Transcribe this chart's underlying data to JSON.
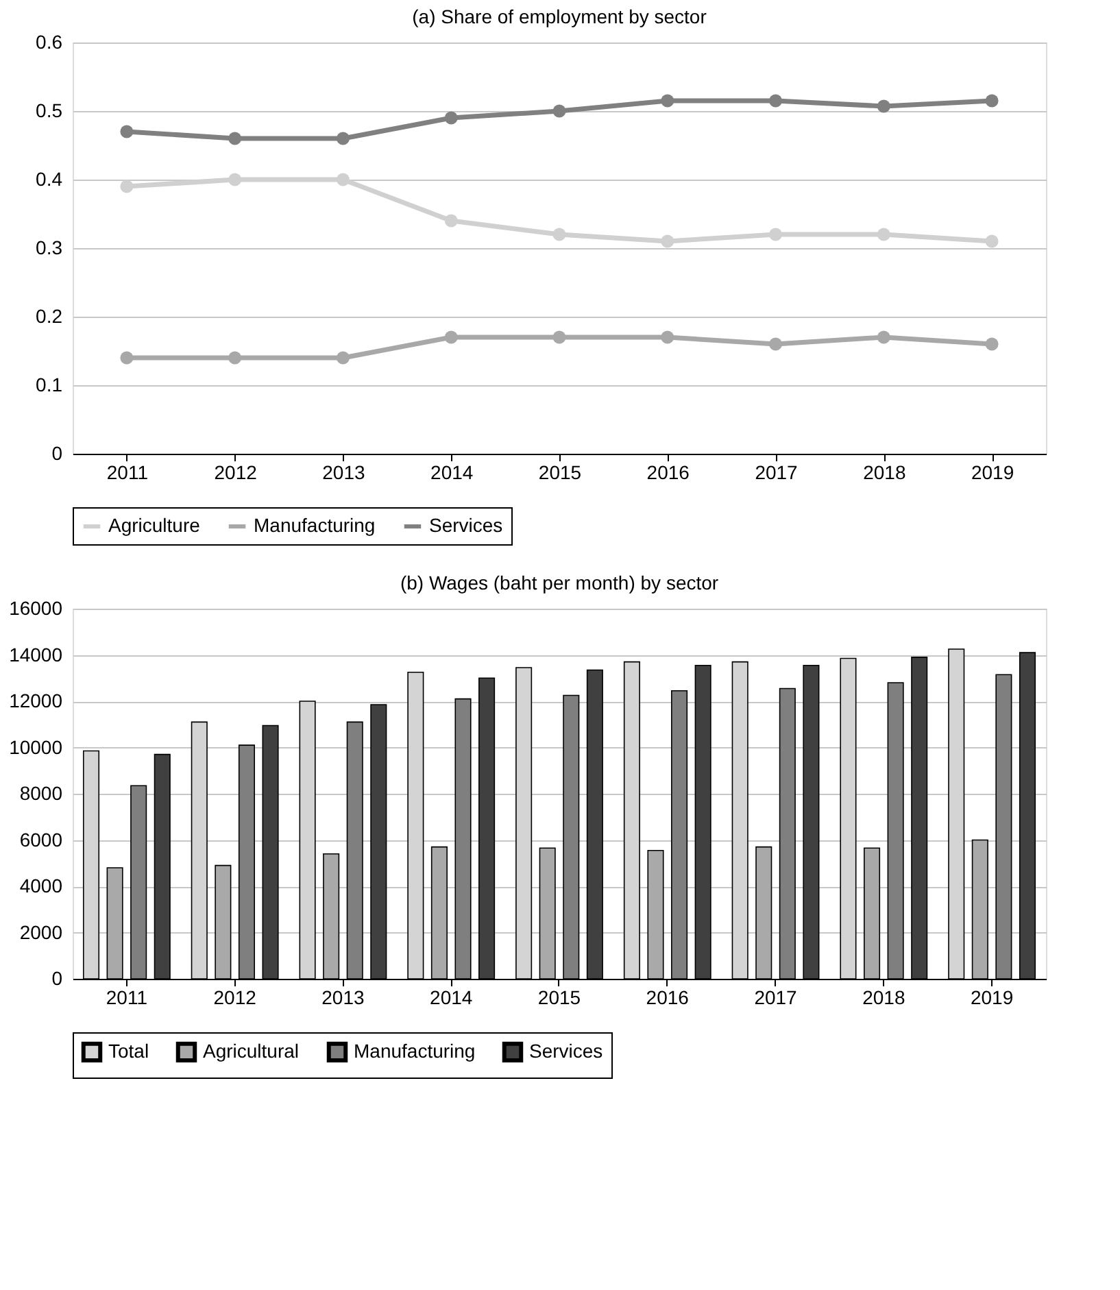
{
  "chart_data": [
    {
      "type": "line",
      "title": "(a) Share of employment by sector",
      "categories": [
        "2011",
        "2012",
        "2013",
        "2014",
        "2015",
        "2016",
        "2017",
        "2018",
        "2019"
      ],
      "series": [
        {
          "name": "Agriculture",
          "color": "#d0d0d0",
          "values": [
            0.39,
            0.4,
            0.4,
            0.34,
            0.32,
            0.31,
            0.32,
            0.32,
            0.31
          ]
        },
        {
          "name": "Manufacturing",
          "color": "#a8a8a8",
          "values": [
            0.14,
            0.14,
            0.14,
            0.17,
            0.17,
            0.17,
            0.16,
            0.17,
            0.16
          ]
        },
        {
          "name": "Services",
          "color": "#808080",
          "values": [
            0.47,
            0.46,
            0.46,
            0.49,
            0.5,
            0.515,
            0.515,
            0.507,
            0.515
          ]
        }
      ],
      "ylim": [
        0,
        0.6
      ],
      "yticks": [
        0,
        0.1,
        0.2,
        0.3,
        0.4,
        0.5,
        0.6
      ],
      "grid": "y",
      "legend": "bottom",
      "marker": "circle",
      "line_style": "solid"
    },
    {
      "type": "bar",
      "title": "(b) Wages (baht per month) by sector",
      "categories": [
        "2011",
        "2012",
        "2013",
        "2014",
        "2015",
        "2016",
        "2017",
        "2018",
        "2019"
      ],
      "series": [
        {
          "name": "Total",
          "color": "#d4d4d4",
          "values": [
            9850,
            11100,
            12000,
            13250,
            13450,
            13700,
            13700,
            13850,
            14250
          ]
        },
        {
          "name": "Agricultural",
          "color": "#a9a9a9",
          "values": [
            4800,
            4900,
            5400,
            5700,
            5650,
            5550,
            5700,
            5650,
            6000
          ]
        },
        {
          "name": "Manufacturing",
          "color": "#7f7f7f",
          "values": [
            8350,
            10100,
            11100,
            12100,
            12250,
            12450,
            12550,
            12800,
            13150
          ]
        },
        {
          "name": "Services",
          "color": "#404040",
          "values": [
            9700,
            10950,
            11850,
            13000,
            13350,
            13550,
            13550,
            13900,
            14100
          ]
        }
      ],
      "ylim": [
        0,
        16000
      ],
      "yticks": [
        0,
        2000,
        4000,
        6000,
        8000,
        10000,
        12000,
        14000,
        16000
      ],
      "grid": "y",
      "legend": "bottom"
    }
  ]
}
